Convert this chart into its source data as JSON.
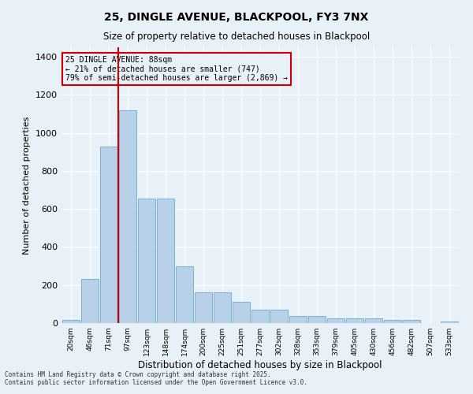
{
  "title_line1": "25, DINGLE AVENUE, BLACKPOOL, FY3 7NX",
  "title_line2": "Size of property relative to detached houses in Blackpool",
  "xlabel": "Distribution of detached houses by size in Blackpool",
  "ylabel": "Number of detached properties",
  "bar_color": "#b8d0e8",
  "bar_edge_color": "#6aaad4",
  "background_color": "#e8f0f8",
  "grid_color": "#ffffff",
  "annotation_line1": "25 DINGLE AVENUE: 88sqm",
  "annotation_line2": "← 21% of detached houses are smaller (747)",
  "annotation_line3": "79% of semi-detached houses are larger (2,869) →",
  "annotation_box_color": "#cc0000",
  "vline_color": "#cc0000",
  "footnote_line1": "Contains HM Land Registry data © Crown copyright and database right 2025.",
  "footnote_line2": "Contains public sector information licensed under the Open Government Licence v3.0.",
  "categories": [
    "20sqm",
    "46sqm",
    "71sqm",
    "97sqm",
    "123sqm",
    "148sqm",
    "174sqm",
    "200sqm",
    "225sqm",
    "251sqm",
    "277sqm",
    "302sqm",
    "328sqm",
    "353sqm",
    "379sqm",
    "405sqm",
    "430sqm",
    "456sqm",
    "482sqm",
    "507sqm",
    "533sqm"
  ],
  "values": [
    15,
    230,
    930,
    1120,
    655,
    655,
    300,
    160,
    160,
    110,
    70,
    70,
    38,
    38,
    25,
    25,
    25,
    15,
    15,
    0,
    10
  ],
  "ylim": [
    0,
    1450
  ],
  "yticks": [
    0,
    200,
    400,
    600,
    800,
    1000,
    1200,
    1400
  ],
  "vline_x": 2.5
}
